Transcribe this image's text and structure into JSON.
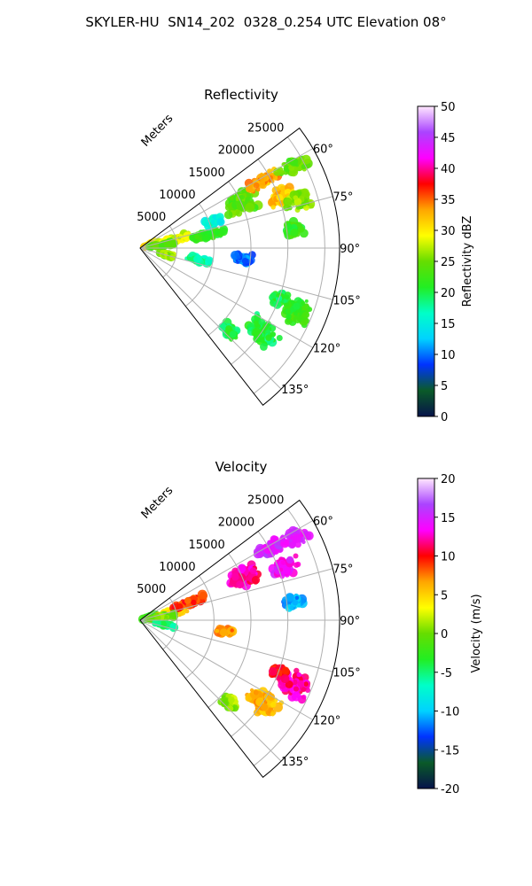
{
  "figure": {
    "suptitle": "SKYLER-HU  SN14_202  0328_0.254 UTC Elevation 08°"
  },
  "chart_data": [
    {
      "type": "heatmap",
      "projection": "polar-sector",
      "title": "Reflectivity",
      "radial_label": "Meters",
      "radial_ticks": [
        5000,
        10000,
        15000,
        20000,
        25000
      ],
      "radial_range": [
        0,
        27000
      ],
      "azimuth_range_deg": [
        53,
        142
      ],
      "azimuth_ticks": [
        60,
        75,
        90,
        105,
        120,
        135
      ],
      "azimuth_tick_labels": [
        "60°",
        "75°",
        "90°",
        "105°",
        "120°",
        "135°"
      ],
      "grid": true,
      "colorbar": {
        "label": "Reflectivity dBZ",
        "range": [
          0,
          50
        ],
        "ticks": [
          0,
          5,
          10,
          15,
          20,
          25,
          30,
          35,
          40,
          45,
          50
        ],
        "stops": [
          "#06134a",
          "#0a5a28",
          "#0033ff",
          "#00d2ff",
          "#00ffc8",
          "#22ee22",
          "#66dd00",
          "#ffff00",
          "#ffa500",
          "#ff0000",
          "#ff00ff",
          "#aa44ff",
          "#ffe8ff"
        ]
      },
      "echoes": [
        {
          "az": 72,
          "r": 1500,
          "dbz": 30,
          "spread_az": 6,
          "spread_r": 1200
        },
        {
          "az": 76,
          "r": 4500,
          "dbz": 28,
          "spread_az": 5,
          "spread_r": 2500
        },
        {
          "az": 78,
          "r": 9500,
          "dbz": 22,
          "spread_az": 4,
          "spread_r": 2500
        },
        {
          "az": 82,
          "r": 3000,
          "dbz": 24,
          "spread_az": 4,
          "spread_r": 2000
        },
        {
          "az": 70,
          "r": 10500,
          "dbz": 16,
          "spread_az": 3,
          "spread_r": 1500
        },
        {
          "az": 66,
          "r": 15000,
          "dbz": 24,
          "spread_az": 6,
          "spread_r": 2500
        },
        {
          "az": 61,
          "r": 19000,
          "dbz": 33,
          "spread_az": 3,
          "spread_r": 2500
        },
        {
          "az": 62,
          "r": 23500,
          "dbz": 24,
          "spread_az": 3,
          "spread_r": 2500
        },
        {
          "az": 70,
          "r": 20500,
          "dbz": 32,
          "spread_az": 4,
          "spread_r": 2000
        },
        {
          "az": 73,
          "r": 22500,
          "dbz": 26,
          "spread_az": 4,
          "spread_r": 2000
        },
        {
          "az": 83,
          "r": 21000,
          "dbz": 22,
          "spread_az": 3,
          "spread_r": 1500
        },
        {
          "az": 96,
          "r": 14000,
          "dbz": 10,
          "spread_az": 3,
          "spread_r": 1500
        },
        {
          "az": 101,
          "r": 8000,
          "dbz": 18,
          "spread_az": 3,
          "spread_r": 2000
        },
        {
          "az": 104,
          "r": 3500,
          "dbz": 26,
          "spread_az": 3,
          "spread_r": 1500
        },
        {
          "az": 112,
          "r": 23000,
          "dbz": 22,
          "spread_az": 5,
          "spread_r": 2500
        },
        {
          "az": 110,
          "r": 20000,
          "dbz": 20,
          "spread_az": 3,
          "spread_r": 1200
        },
        {
          "az": 124,
          "r": 20000,
          "dbz": 20,
          "spread_az": 5,
          "spread_r": 2500
        },
        {
          "az": 133,
          "r": 16500,
          "dbz": 20,
          "spread_az": 3,
          "spread_r": 1500
        }
      ]
    },
    {
      "type": "heatmap",
      "projection": "polar-sector",
      "title": "Velocity",
      "radial_label": "Meters",
      "radial_ticks": [
        5000,
        10000,
        15000,
        20000,
        25000
      ],
      "radial_range": [
        0,
        27000
      ],
      "azimuth_range_deg": [
        53,
        142
      ],
      "azimuth_ticks": [
        60,
        75,
        90,
        105,
        120,
        135
      ],
      "azimuth_tick_labels": [
        "60°",
        "75°",
        "90°",
        "105°",
        "120°",
        "135°"
      ],
      "grid": true,
      "colorbar": {
        "label": "Velocity (m/s)",
        "range": [
          -20,
          20
        ],
        "ticks": [
          -20,
          -15,
          -10,
          -5,
          0,
          5,
          10,
          15,
          20
        ],
        "stops": [
          "#06134a",
          "#0a5a28",
          "#0033ff",
          "#00d2ff",
          "#00ffc8",
          "#22ee22",
          "#66dd00",
          "#ffff00",
          "#ffa500",
          "#ff0000",
          "#ff00ff",
          "#aa44ff",
          "#ffe8ff"
        ]
      },
      "echoes": [
        {
          "az": 72,
          "r": 1500,
          "vel": -2,
          "spread_az": 6,
          "spread_r": 1200
        },
        {
          "az": 76,
          "r": 4500,
          "vel": 5,
          "spread_az": 5,
          "spread_r": 2500
        },
        {
          "az": 70,
          "r": 7000,
          "vel": 9,
          "spread_az": 4,
          "spread_r": 2500
        },
        {
          "az": 82,
          "r": 3000,
          "vel": 0,
          "spread_az": 4,
          "spread_r": 2000
        },
        {
          "az": 100,
          "r": 3500,
          "vel": -5,
          "spread_az": 4,
          "spread_r": 1500
        },
        {
          "az": 66,
          "r": 15000,
          "vel": 12,
          "spread_az": 6,
          "spread_r": 2500
        },
        {
          "az": 61,
          "r": 20000,
          "vel": 15,
          "spread_az": 3,
          "spread_r": 2500
        },
        {
          "az": 62,
          "r": 23500,
          "vel": 15,
          "spread_az": 3,
          "spread_r": 2500
        },
        {
          "az": 70,
          "r": 21000,
          "vel": 14,
          "spread_az": 4,
          "spread_r": 2000
        },
        {
          "az": 83,
          "r": 21000,
          "vel": -11,
          "spread_az": 3,
          "spread_r": 1500
        },
        {
          "az": 97,
          "r": 11500,
          "vel": 7,
          "spread_az": 3,
          "spread_r": 1200
        },
        {
          "az": 112,
          "r": 23000,
          "vel": 12,
          "spread_az": 5,
          "spread_r": 2500
        },
        {
          "az": 110,
          "r": 20000,
          "vel": 10,
          "spread_az": 3,
          "spread_r": 1200
        },
        {
          "az": 124,
          "r": 20000,
          "vel": 6,
          "spread_az": 5,
          "spread_r": 2500
        },
        {
          "az": 133,
          "r": 16500,
          "vel": 1,
          "spread_az": 3,
          "spread_r": 1500
        }
      ]
    }
  ]
}
